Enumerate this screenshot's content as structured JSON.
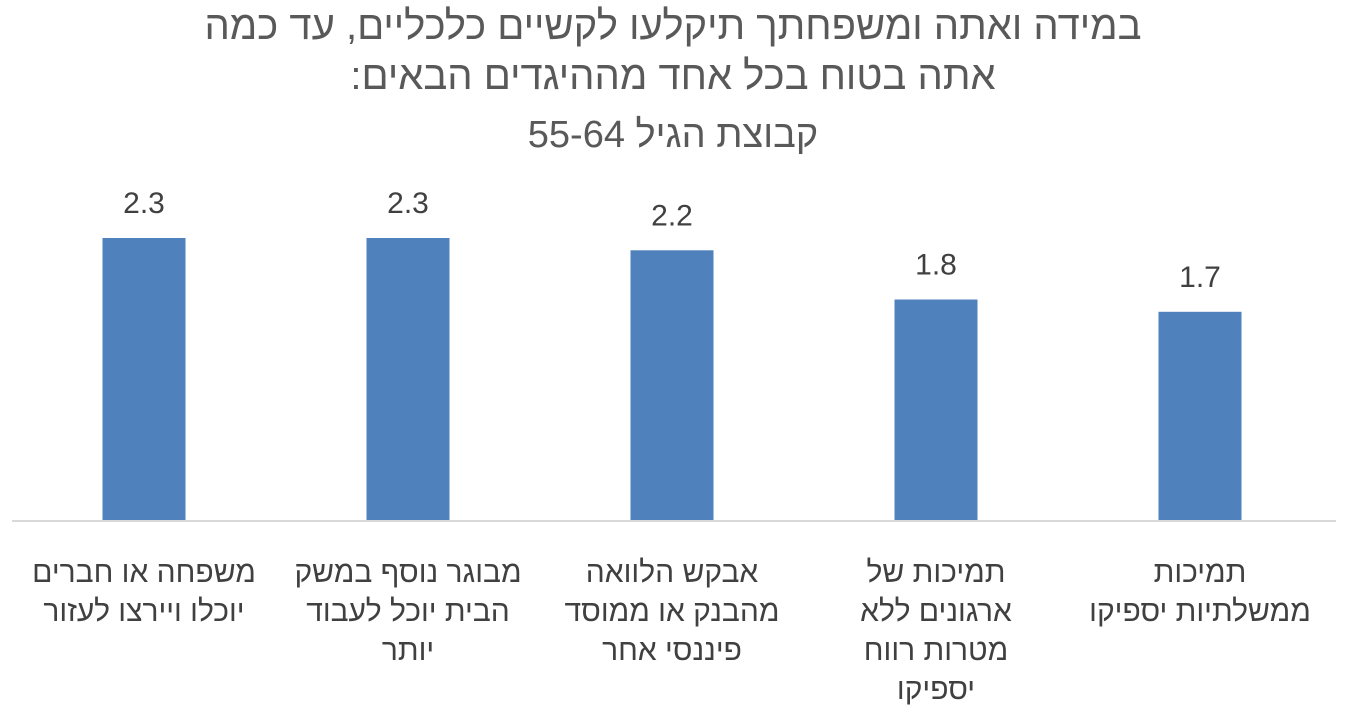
{
  "chart_data": {
    "type": "bar",
    "title_lines": [
      "במידה ואתה ומשפחתך תיקלעו לקשיים כלכליים, עד כמה",
      "אתה בטוח בכל אחד מההיגדים הבאים:"
    ],
    "subtitle": "קבוצת הגיל 55-64",
    "categories": [
      [
        "משפחה או חברים",
        "יוכלו ויירצו לעזור"
      ],
      [
        "מבוגר נוסף במשק",
        "הבית יוכל לעבוד",
        "יותר"
      ],
      [
        "אבקש הלוואה",
        "מהבנק או ממוסד",
        "פיננסי אחר"
      ],
      [
        "תמיכות של",
        "ארגונים ללא",
        "מטרות רווח",
        "יספיקו"
      ],
      [
        "תמיכות",
        "ממשלתיות יספיקו"
      ]
    ],
    "values": [
      2.3,
      2.3,
      2.2,
      1.8,
      1.7
    ],
    "data_labels": [
      "2.3",
      "2.3",
      "2.2",
      "1.8",
      "1.7"
    ],
    "ylim": [
      0,
      2.3
    ],
    "xlabel": "",
    "ylabel": "",
    "grid": false,
    "legend": "none",
    "colors": {
      "bar": "#4f81bd",
      "axis": "#d9d9d9",
      "text": "#404040",
      "title": "#595959"
    }
  }
}
